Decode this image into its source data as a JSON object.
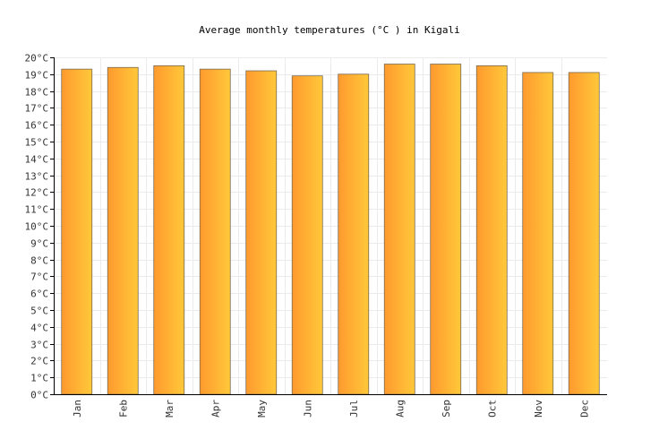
{
  "chart_data": {
    "type": "bar",
    "title": "Average monthly temperatures (°C ) in Kigali",
    "xlabel": "",
    "ylabel": "",
    "categories": [
      "Jan",
      "Feb",
      "Mar",
      "Apr",
      "May",
      "Jun",
      "Jul",
      "Aug",
      "Sep",
      "Oct",
      "Nov",
      "Dec"
    ],
    "values": [
      19.3,
      19.4,
      19.5,
      19.3,
      19.2,
      18.9,
      19.0,
      19.6,
      19.6,
      19.5,
      19.1,
      19.1
    ],
    "ylim": [
      0,
      20
    ],
    "y_ticks": [
      "0°C",
      "1°C",
      "2°C",
      "3°C",
      "4°C",
      "5°C",
      "6°C",
      "7°C",
      "8°C",
      "9°C",
      "10°C",
      "11°C",
      "12°C",
      "13°C",
      "14°C",
      "15°C",
      "16°C",
      "17°C",
      "18°C",
      "19°C",
      "20°C"
    ],
    "grid": true,
    "legend": "none",
    "colors": {
      "bar_left": "#ff9a2e",
      "bar_right": "#ffc83a",
      "bar_stroke": "#7a6a50",
      "grid": "#ebebeb",
      "axis": "#000000"
    }
  }
}
